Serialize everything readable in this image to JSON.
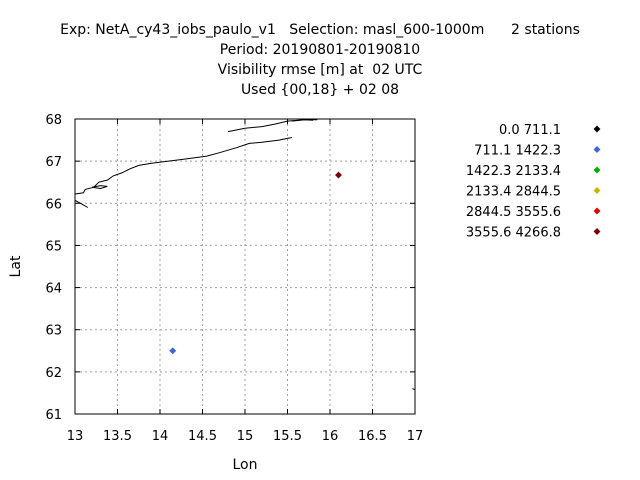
{
  "chart_data": {
    "type": "scatter",
    "title_lines": [
      "Exp: NetA_cy43_iobs_paulo_v1   Selection: masl_600-1000m      2 stations",
      "Period: 20190801-20190810",
      "Visibility rmse [m] at  02 UTC",
      "Used {00,18} + 02 08"
    ],
    "xlabel": "Lon",
    "ylabel": "Lat",
    "xlim": [
      13,
      17
    ],
    "ylim": [
      61,
      68
    ],
    "xticks": [
      "13",
      "13.5",
      "14",
      "14.5",
      "15",
      "15.5",
      "16",
      "16.5",
      "17"
    ],
    "yticks": [
      "61",
      "62",
      "63",
      "64",
      "65",
      "66",
      "67",
      "68"
    ],
    "grid": true,
    "legend_placement": "right",
    "series": [
      {
        "name": "0.0 711.1",
        "color": "#000000",
        "points": []
      },
      {
        "name": "711.1 1422.3",
        "color": "#3a67d8",
        "points": [
          [
            14.15,
            62.5
          ]
        ]
      },
      {
        "name": "1422.3 2133.4",
        "color": "#00b000",
        "points": []
      },
      {
        "name": "2133.4 2844.5",
        "color": "#c8b400",
        "points": []
      },
      {
        "name": "2844.5 3555.6",
        "color": "#e00000",
        "points": []
      },
      {
        "name": "3555.6 4266.8",
        "color": "#7a0000",
        "points": [
          [
            16.1,
            66.67
          ]
        ]
      }
    ],
    "coastline": [
      [
        [
          13.0,
          66.22
        ],
        [
          13.1,
          66.25
        ],
        [
          13.12,
          66.33
        ],
        [
          13.22,
          66.38
        ],
        [
          13.28,
          66.5
        ],
        [
          13.38,
          66.55
        ],
        [
          13.45,
          66.65
        ],
        [
          13.55,
          66.72
        ],
        [
          13.65,
          66.82
        ],
        [
          13.75,
          66.9
        ],
        [
          13.9,
          66.95
        ],
        [
          14.1,
          67.0
        ],
        [
          14.3,
          67.05
        ],
        [
          14.55,
          67.12
        ],
        [
          14.7,
          67.2
        ],
        [
          14.9,
          67.32
        ],
        [
          15.05,
          67.42
        ],
        [
          15.2,
          67.45
        ],
        [
          15.4,
          67.5
        ],
        [
          15.55,
          67.56
        ]
      ],
      [
        [
          13.0,
          66.07
        ],
        [
          13.08,
          65.98
        ],
        [
          13.15,
          65.9
        ]
      ],
      [
        [
          13.2,
          66.38
        ],
        [
          13.3,
          66.42
        ],
        [
          13.38,
          66.4
        ],
        [
          13.3,
          66.35
        ],
        [
          13.2,
          66.38
        ]
      ],
      [
        [
          14.8,
          67.7
        ],
        [
          15.0,
          67.78
        ],
        [
          15.2,
          67.82
        ],
        [
          15.35,
          67.88
        ],
        [
          15.5,
          67.95
        ],
        [
          15.7,
          67.98
        ],
        [
          15.8,
          67.97
        ]
      ],
      [
        [
          15.55,
          67.95
        ],
        [
          15.7,
          67.98
        ],
        [
          15.85,
          67.98
        ]
      ],
      [
        [
          17.0,
          61.58
        ],
        [
          16.97,
          61.6
        ]
      ]
    ]
  }
}
